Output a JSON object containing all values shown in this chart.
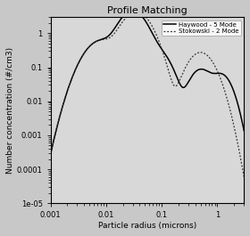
{
  "title": "Profile Matching",
  "xlabel": "Particle radius (microns)",
  "ylabel": "Number concentration (#/cm3)",
  "xlim": [
    0.001,
    3.0
  ],
  "ylim": [
    1e-05,
    3.0
  ],
  "legend": [
    "Haywood - 5 Mode",
    "Stokowski - 2 Mode"
  ],
  "line1_color": "#000000",
  "line2_color": "#333333",
  "bg_color": "#d8d8d8",
  "fig_color": "#c8c8c8",
  "title_fontsize": 8,
  "label_fontsize": 6.5,
  "tick_fontsize": 6
}
